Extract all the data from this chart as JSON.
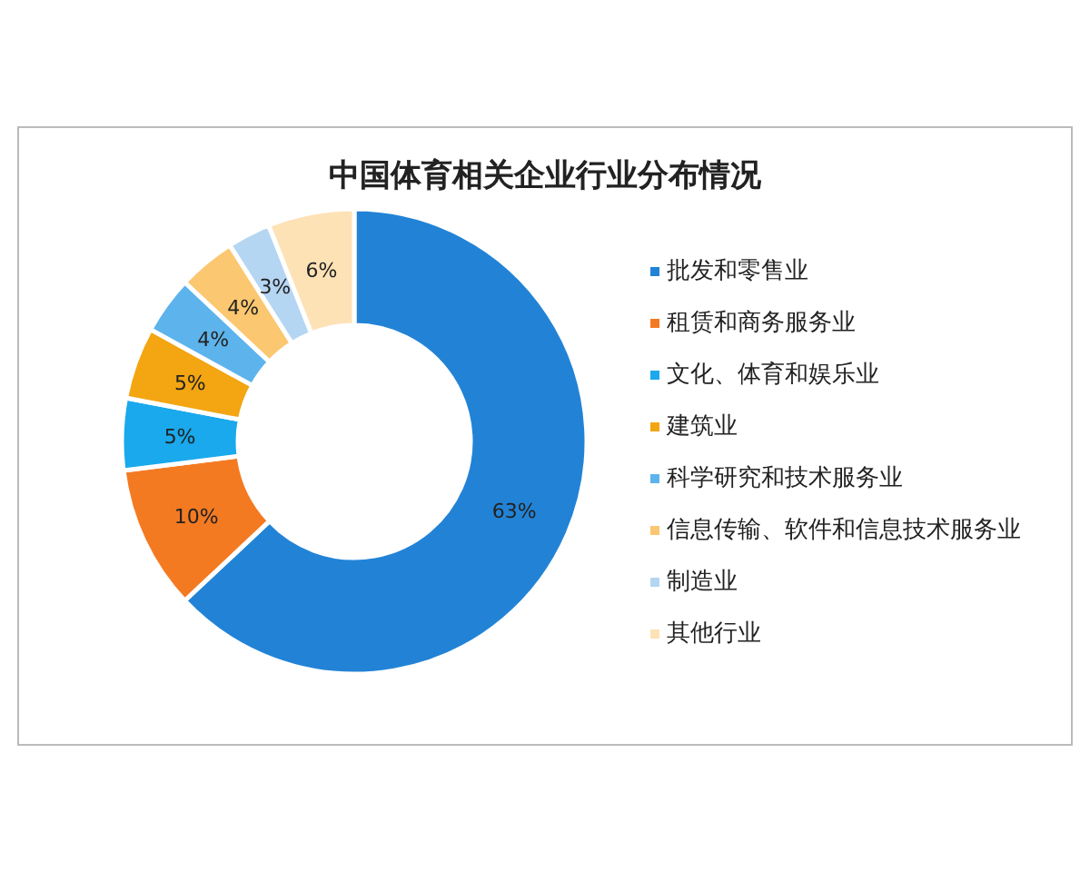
{
  "chart_data": {
    "type": "donut",
    "title": "中国体育相关企业行业分布情况",
    "categories": [
      "批发和零售业",
      "租赁和商务服务业",
      "文化、体育和娱乐业",
      "建筑业",
      "科学研究和技术服务业",
      "信息传输、软件和信息技术服务业",
      "制造业",
      "其他行业"
    ],
    "values": [
      63,
      10,
      5,
      5,
      4,
      4,
      3,
      6
    ],
    "value_labels": [
      "63%",
      "10%",
      "5%",
      "5%",
      "4%",
      "4%",
      "3%",
      "6%"
    ],
    "colors": [
      "#2283d6",
      "#f47a22",
      "#19a9ec",
      "#f3a512",
      "#5db4ec",
      "#fbc770",
      "#b5d6f3",
      "#fde2b6"
    ],
    "legend": "right"
  }
}
